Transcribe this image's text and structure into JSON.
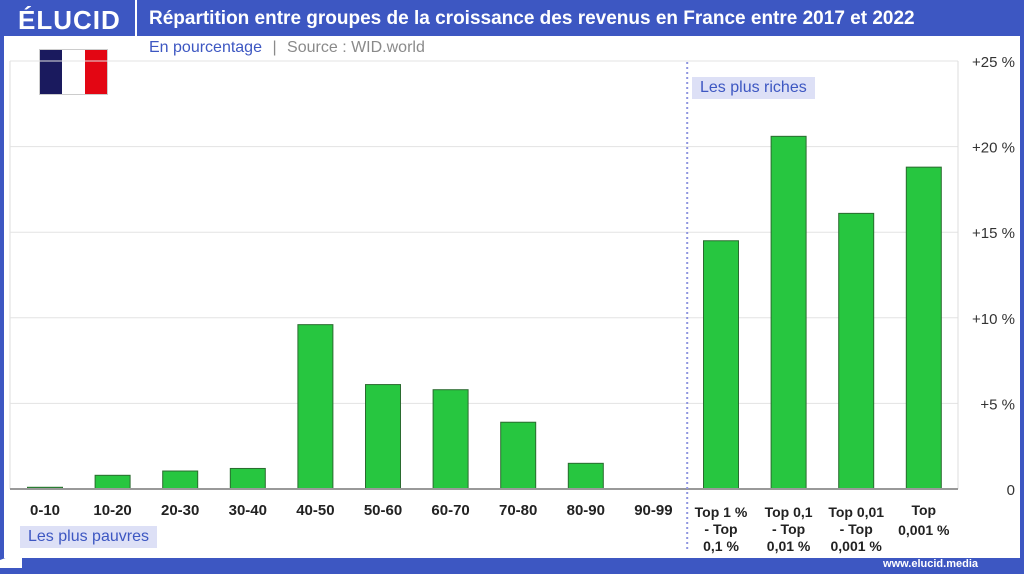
{
  "header": {
    "logo": "ÉLUCID",
    "title": "Répartition entre groupes de la croissance des revenus en France entre 2017 et 2022"
  },
  "subtitle": {
    "unit": "En pourcentage",
    "separator": "|",
    "source": "Source : WID.world"
  },
  "flag": {
    "colors": [
      "#1a1a5e",
      "#ffffff",
      "#e30613"
    ]
  },
  "footer": {
    "url": "www.elucid.media"
  },
  "annotations": {
    "rich": "Les plus riches",
    "poor": "Les plus pauvres"
  },
  "colors": {
    "brand": "#3d57c2",
    "bar": "#27c640",
    "bar_stroke": "#2a6b2f"
  },
  "chart_data": {
    "type": "bar",
    "title": "Répartition entre groupes de la croissance des revenus en France entre 2017 et 2022",
    "categories": [
      [
        "0-10"
      ],
      [
        "10-20"
      ],
      [
        "20-30"
      ],
      [
        "30-40"
      ],
      [
        "40-50"
      ],
      [
        "50-60"
      ],
      [
        "60-70"
      ],
      [
        "70-80"
      ],
      [
        "80-90"
      ],
      [
        "90-99"
      ],
      [
        "Top 1 %",
        "- Top",
        "0,1 %"
      ],
      [
        "Top 0,1",
        "- Top",
        "0,01 %"
      ],
      [
        "Top 0,01",
        "- Top",
        "0,001 %"
      ],
      [
        "Top",
        "0,001 %"
      ]
    ],
    "values": [
      0.1,
      0.8,
      1.05,
      1.2,
      9.6,
      6.1,
      5.8,
      3.9,
      1.5,
      0,
      14.5,
      20.6,
      16.1,
      18.8
    ],
    "ylim": [
      0,
      25
    ],
    "yticks": [
      {
        "v": 0,
        "label": "0"
      },
      {
        "v": 5,
        "label": "+5 %"
      },
      {
        "v": 10,
        "label": "+10 %"
      },
      {
        "v": 15,
        "label": "+15 %"
      },
      {
        "v": 20,
        "label": "+20 %"
      },
      {
        "v": 25,
        "label": "+25 %"
      }
    ],
    "y_axis_position": "right",
    "grid": true,
    "divider_after_category": "90-99"
  }
}
